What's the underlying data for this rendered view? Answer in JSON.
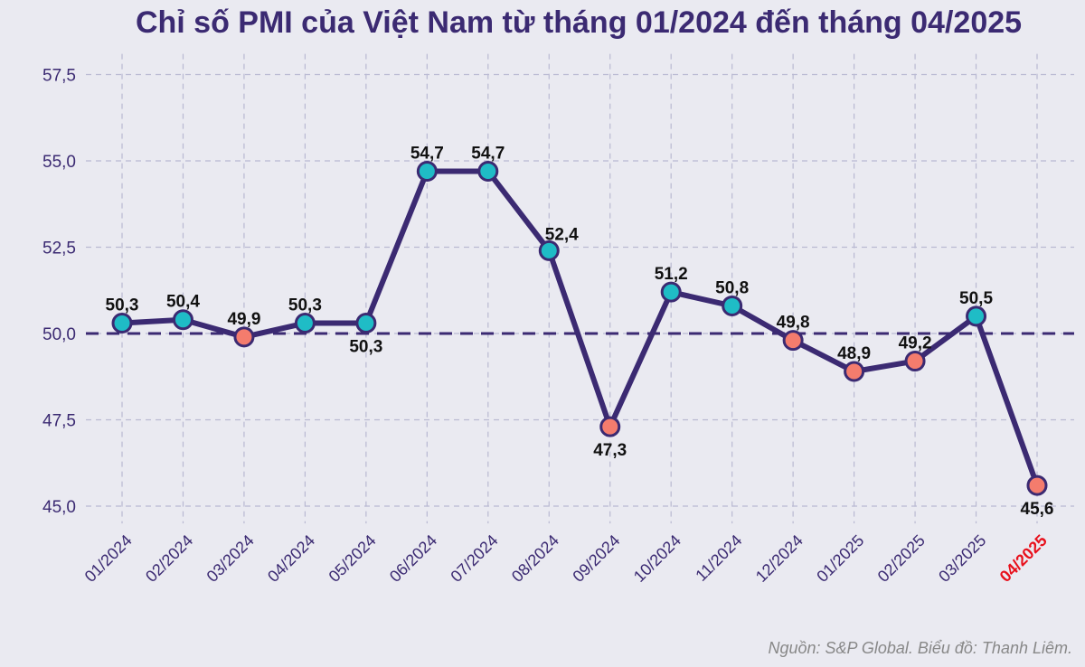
{
  "chart_data": {
    "type": "line",
    "title": "Chỉ số PMI của Việt Nam từ tháng 01/2024 đến tháng 04/2025",
    "xlabel": "",
    "ylabel": "",
    "categories": [
      "01/2024",
      "02/2024",
      "03/2024",
      "04/2024",
      "05/2024",
      "06/2024",
      "07/2024",
      "08/2024",
      "09/2024",
      "10/2024",
      "11/2024",
      "12/2024",
      "01/2025",
      "02/2025",
      "03/2025",
      "04/2025"
    ],
    "values": [
      50.3,
      50.4,
      49.9,
      50.3,
      50.3,
      54.7,
      54.7,
      52.4,
      47.3,
      51.2,
      50.8,
      49.8,
      48.9,
      49.2,
      50.5,
      45.6
    ],
    "value_labels": [
      "50,3",
      "50,4",
      "49,9",
      "50,3",
      "50,3",
      "54,7",
      "54,7",
      "52,4",
      "47,3",
      "51,2",
      "50,8",
      "49,8",
      "48,9",
      "49,2",
      "50,5",
      "45,6"
    ],
    "label_position": [
      "above",
      "above",
      "above",
      "above",
      "below",
      "above",
      "above",
      "above-right",
      "below",
      "above",
      "above",
      "above",
      "above",
      "above",
      "above",
      "below"
    ],
    "yticks": [
      45.0,
      47.5,
      50.0,
      52.5,
      55.0,
      57.5
    ],
    "ytick_labels": [
      "45,0",
      "47,5",
      "50,0",
      "52,5",
      "55,0",
      "57,5"
    ],
    "ylim": [
      44.5,
      58.1
    ],
    "reference_line": 50.0,
    "grid": true,
    "highlight_category": "04/2025",
    "source": "Nguồn: S&P Global. Biểu đồ: Thanh Liêm.",
    "colors": {
      "line": "#3b2a72",
      "above": "#1fbcc6",
      "below": "#f47c6d",
      "highlight": "#e8101c",
      "grid": "#b9b9d2",
      "text": "#3b2a72"
    }
  }
}
